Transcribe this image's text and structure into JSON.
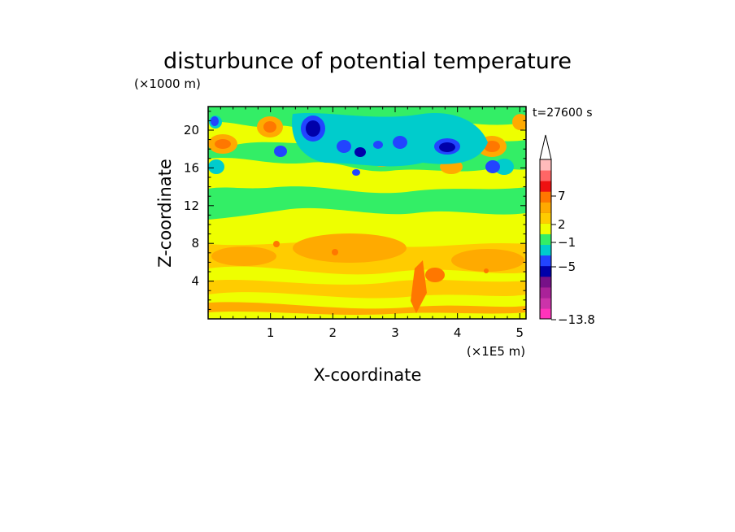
{
  "chart_data": {
    "type": "heatmap",
    "title": "disturbunce of potential temperature",
    "xlabel": "X-coordinate",
    "ylabel": "Z-coordinate",
    "x_unit": "(×1E5 m)",
    "y_unit": "(×1000 m)",
    "time_label": "t=27600 s",
    "xlim": [
      0,
      5.1
    ],
    "ylim": [
      0,
      22.5
    ],
    "x_ticks": [
      "1",
      "2",
      "3",
      "4",
      "5"
    ],
    "y_ticks": [
      "4",
      "8",
      "12",
      "16",
      "20"
    ],
    "colorbar": {
      "labels": [
        "7",
        "2",
        "−1",
        "−5",
        "−13.8"
      ],
      "label_values": [
        7,
        2,
        -1,
        -5,
        -13.8
      ],
      "extend": "max",
      "colors": [
        "#ff33bb",
        "#cc33aa",
        "#aa2299",
        "#771188",
        "#0000aa",
        "#2244ff",
        "#00cccc",
        "#33ee66",
        "#eeff00",
        "#ffcc00",
        "#ffaa00",
        "#ff7700",
        "#ee1111",
        "#ff6666",
        "#ffbbbb"
      ]
    },
    "levels": [
      "#ffcc00",
      "#eeff00",
      "#ffaa00",
      "#33ee66",
      "#00cccc",
      "#2244ff",
      "#0000aa",
      "#ff7700",
      "#ff6666"
    ]
  }
}
